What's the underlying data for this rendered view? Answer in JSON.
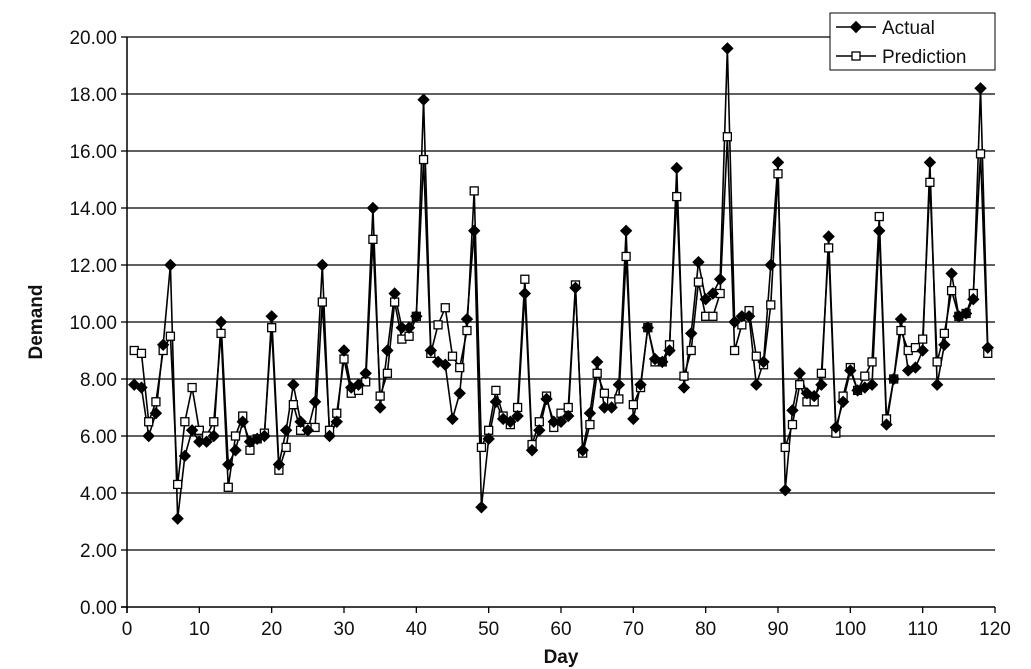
{
  "chart_data": {
    "type": "line",
    "xlabel": "Day",
    "ylabel": "Demand",
    "xlim": [
      0,
      120
    ],
    "ylim": [
      0,
      20
    ],
    "x_ticks": [
      "0",
      "10",
      "20",
      "30",
      "40",
      "50",
      "60",
      "70",
      "80",
      "90",
      "100",
      "110",
      "120"
    ],
    "y_ticks": [
      "0.00",
      "2.00",
      "4.00",
      "6.00",
      "8.00",
      "10.00",
      "12.00",
      "14.00",
      "16.00",
      "18.00",
      "20.00"
    ],
    "grid": "horizontal",
    "legend_position": "top-right",
    "x": [
      1,
      2,
      3,
      4,
      5,
      6,
      7,
      8,
      9,
      10,
      11,
      12,
      13,
      14,
      15,
      16,
      17,
      18,
      19,
      20,
      21,
      22,
      23,
      24,
      25,
      26,
      27,
      28,
      29,
      30,
      31,
      32,
      33,
      34,
      35,
      36,
      37,
      38,
      39,
      40,
      41,
      42,
      43,
      44,
      45,
      46,
      47,
      48,
      49,
      50,
      51,
      52,
      53,
      54,
      55,
      56,
      57,
      58,
      59,
      60,
      61,
      62,
      63,
      64,
      65,
      66,
      67,
      68,
      69,
      70,
      71,
      72,
      73,
      74,
      75,
      76,
      77,
      78,
      79,
      80,
      81,
      82,
      83,
      84,
      85,
      86,
      87,
      88,
      89,
      90,
      91,
      92,
      93,
      94,
      95,
      96,
      97,
      98,
      99,
      100,
      101,
      102,
      103,
      104,
      105,
      106,
      107,
      108,
      109,
      110,
      111,
      112,
      113,
      114,
      115,
      116,
      117,
      118,
      119
    ],
    "series": [
      {
        "name": "Actual",
        "marker": "diamond-filled",
        "values": [
          7.8,
          7.7,
          6.0,
          6.8,
          9.2,
          12.0,
          3.1,
          5.3,
          6.2,
          5.8,
          5.8,
          6.0,
          10.0,
          5.0,
          5.5,
          6.5,
          5.8,
          5.9,
          6.0,
          10.2,
          5.0,
          6.2,
          7.8,
          6.5,
          6.2,
          7.2,
          12.0,
          6.0,
          6.5,
          9.0,
          7.7,
          7.8,
          8.2,
          14.0,
          7.0,
          9.0,
          11.0,
          9.8,
          9.8,
          10.2,
          17.8,
          9.0,
          8.6,
          8.5,
          6.6,
          7.5,
          10.1,
          13.2,
          3.5,
          5.9,
          7.2,
          6.6,
          6.5,
          6.7,
          11.0,
          5.5,
          6.2,
          7.3,
          6.5,
          6.5,
          6.7,
          11.2,
          5.5,
          6.8,
          8.6,
          7.0,
          7.0,
          7.8,
          13.2,
          6.6,
          7.8,
          9.8,
          8.7,
          8.6,
          9.0,
          15.4,
          7.7,
          9.6,
          12.1,
          10.8,
          11.0,
          11.5,
          19.6,
          10.0,
          10.2,
          10.2,
          7.8,
          8.6,
          12.0,
          15.6,
          4.1,
          6.9,
          8.2,
          7.5,
          7.4,
          7.8,
          13.0,
          6.3,
          7.2,
          8.3,
          7.6,
          7.7,
          7.8,
          13.2,
          6.4,
          8.0,
          10.1,
          8.3,
          8.4,
          9.0,
          15.6,
          7.8,
          9.2,
          11.7,
          10.2,
          10.3,
          10.8,
          18.2,
          9.1
        ]
      },
      {
        "name": "Prediction",
        "marker": "square-open",
        "values": [
          9.0,
          8.9,
          6.5,
          7.2,
          9.0,
          9.5,
          4.3,
          6.5,
          7.7,
          6.2,
          6.0,
          6.5,
          9.6,
          4.2,
          6.0,
          6.7,
          5.5,
          5.9,
          6.1,
          9.8,
          4.8,
          5.6,
          7.1,
          6.2,
          6.3,
          6.3,
          10.7,
          6.2,
          6.8,
          8.7,
          7.5,
          7.6,
          7.9,
          12.9,
          7.4,
          8.2,
          10.7,
          9.4,
          9.5,
          10.2,
          15.7,
          8.9,
          9.9,
          10.5,
          8.8,
          8.4,
          9.7,
          14.6,
          5.6,
          6.2,
          7.6,
          6.7,
          6.4,
          7.0,
          11.5,
          5.7,
          6.5,
          7.4,
          6.3,
          6.8,
          7.0,
          11.3,
          5.4,
          6.4,
          8.2,
          7.5,
          7.2,
          7.3,
          12.3,
          7.1,
          7.7,
          9.8,
          8.6,
          8.6,
          9.2,
          14.4,
          8.1,
          9.0,
          11.4,
          10.2,
          10.2,
          11.0,
          16.5,
          9.0,
          9.9,
          10.4,
          8.8,
          8.5,
          10.6,
          15.2,
          5.6,
          6.4,
          7.8,
          7.2,
          7.2,
          8.2,
          12.6,
          6.1,
          7.4,
          8.4,
          7.6,
          8.1,
          8.6,
          13.7,
          6.6,
          8.0,
          9.7,
          9.0,
          9.1,
          9.4,
          14.9,
          8.6,
          9.6,
          11.1,
          10.2,
          10.3,
          11.0,
          15.9,
          8.9
        ]
      }
    ]
  }
}
